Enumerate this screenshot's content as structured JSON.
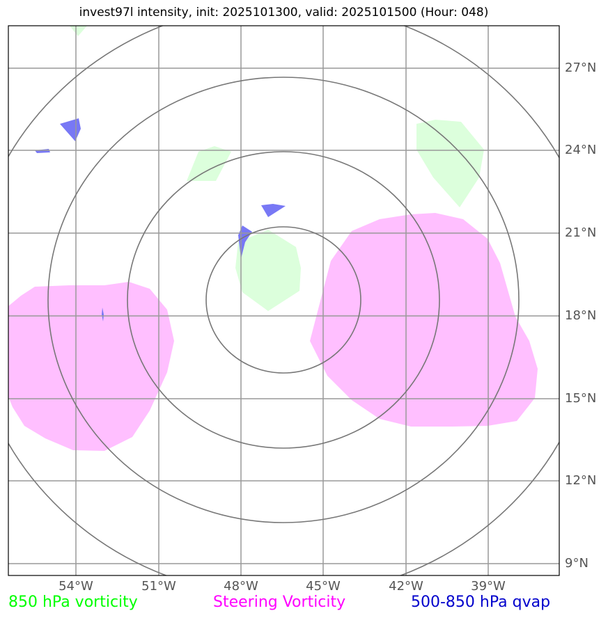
{
  "title": "invest97l intensity, init: 2025101300, valid: 2025101500 (Hour: 048)",
  "lat_labels": [
    "27°N",
    "24°N",
    "21°N",
    "18°N",
    "15°N",
    "12°N",
    "9°N"
  ],
  "lon_labels": [
    "54°W",
    "51°W",
    "48°W",
    "45°W",
    "42°W",
    "39°W"
  ],
  "legend": [
    {
      "label": "850 hPa vorticity",
      "color": "#00ff00"
    },
    {
      "label": "Steering Vorticity",
      "color": "#ff00ff"
    },
    {
      "label": "500-850 hPa qvap",
      "color": "#0000cc"
    }
  ],
  "colors": {
    "vort850_fill": "#dcffdc",
    "steering_fill": "#ffbfff",
    "qvap_fill": "#7878f5",
    "grid": "#999999",
    "range_rings": "#777777"
  }
}
